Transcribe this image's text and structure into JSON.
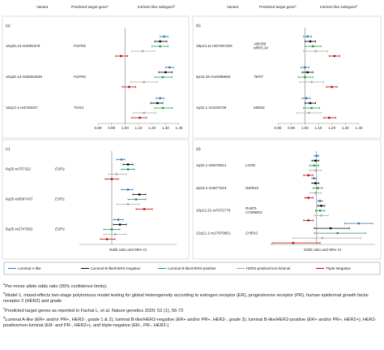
{
  "header": {
    "variant": "Variant",
    "gene": {
      "text": "Predicted target gene",
      "sup": "c"
    },
    "subtypes": {
      "text": "Intrinsic-like subtypes",
      "sup": "d"
    }
  },
  "legend": [
    {
      "name": "Luminal A-like",
      "color": "#2e75b6"
    },
    {
      "name": "Luminal B-like/HER2-negative",
      "color": "#000000"
    },
    {
      "name": "Luminal B-like/HER2-positive",
      "color": "#1a9a4a"
    },
    {
      "name": "HER2-positive/non-luminal",
      "color": "#a6a6a6"
    },
    {
      "name": "Triple-Negative",
      "color": "#c00000"
    }
  ],
  "chart_data": [
    {
      "type": "forest",
      "label": "(a)",
      "reference_line": 1.0,
      "xlim": [
        0.8,
        1.4
      ],
      "xticks": [
        {
          "value": 0.8,
          "label": "0.80"
        },
        {
          "value": 0.9,
          "label": "0.90"
        },
        {
          "value": 1.0,
          "label": "1.00"
        },
        {
          "value": 1.1,
          "label": "1.10"
        },
        {
          "value": 1.2,
          "label": "1.20"
        },
        {
          "value": 1.3,
          "label": "1.30"
        },
        {
          "value": 1.4,
          "label": "1.40"
        }
      ],
      "variants": [
        "10q26.13-rs2981578",
        "10q26.13-rs35054928",
        "16q12.1-rs4784227"
      ],
      "genes": [
        [
          "FGFR2"
        ],
        [
          "FGFR2"
        ],
        [
          "TOX3"
        ]
      ],
      "series": [
        {
          "values": [
            1.29,
            1.33,
            1.26
          ],
          "low": [
            1.26,
            1.3,
            1.23
          ],
          "high": [
            1.32,
            1.36,
            1.29
          ]
        },
        {
          "values": [
            1.26,
            1.3,
            1.24
          ],
          "low": [
            1.22,
            1.25,
            1.19
          ],
          "high": [
            1.31,
            1.35,
            1.28
          ]
        },
        {
          "values": [
            1.26,
            1.28,
            1.28
          ],
          "low": [
            1.2,
            1.22,
            1.22
          ],
          "high": [
            1.32,
            1.35,
            1.35
          ]
        },
        {
          "values": [
            1.13,
            1.14,
            1.14
          ],
          "low": [
            1.05,
            1.04,
            1.06
          ],
          "high": [
            1.22,
            1.24,
            1.23
          ]
        },
        {
          "values": [
            0.97,
            1.03,
            1.11
          ],
          "low": [
            0.93,
            0.98,
            1.05
          ],
          "high": [
            1.02,
            1.08,
            1.16
          ]
        }
      ]
    },
    {
      "type": "forest",
      "label": "(b)",
      "reference_line": 1.0,
      "xlim": [
        0.8,
        1.4
      ],
      "xticks": [
        {
          "value": 0.8,
          "label": "0.80"
        },
        {
          "value": 0.9,
          "label": "0.90"
        },
        {
          "value": 1.0,
          "label": "1.00"
        },
        {
          "value": 1.1,
          "label": "1.10"
        },
        {
          "value": 1.2,
          "label": "1.20"
        },
        {
          "value": 1.3,
          "label": "1.30"
        },
        {
          "value": 1.4,
          "label": "1.40"
        }
      ],
      "variants": [
        "19p13.11-rs67397200",
        "5p15.33-rs10069690",
        "1q32.1-rs4245739"
      ],
      "genes": [
        [
          "ABHD8",
          "MRPL34"
        ],
        [
          "TERT"
        ],
        [
          "MDM4"
        ]
      ],
      "series": [
        {
          "values": [
            1.02,
            1.0,
            1.01
          ],
          "low": [
            0.99,
            0.97,
            0.98
          ],
          "high": [
            1.05,
            1.03,
            1.04
          ]
        },
        {
          "values": [
            1.04,
            1.02,
            1.04
          ],
          "low": [
            1.0,
            0.98,
            1.0
          ],
          "high": [
            1.08,
            1.06,
            1.08
          ]
        },
        {
          "values": [
            1.06,
            1.0,
            1.05
          ],
          "low": [
            1.0,
            0.95,
            0.99
          ],
          "high": [
            1.12,
            1.06,
            1.11
          ]
        },
        {
          "values": [
            1.08,
            1.05,
            1.03
          ],
          "low": [
            0.99,
            0.96,
            0.94
          ],
          "high": [
            1.17,
            1.14,
            1.12
          ]
        },
        {
          "values": [
            1.22,
            1.2,
            1.18
          ],
          "low": [
            1.18,
            1.16,
            1.14
          ],
          "high": [
            1.26,
            1.24,
            1.23
          ]
        }
      ]
    },
    {
      "type": "forest",
      "label": "(c)",
      "reference_line": 1.0,
      "xlim": [
        0.8,
        1.4
      ],
      "xlabel": "Odds ratio and 95% CI",
      "variants": [
        "6q25-rs757322",
        "6q25-rs9397437",
        "6q25-rs2747652"
      ],
      "genes": [
        [
          "ESR1"
        ],
        [
          "ESR1"
        ],
        [
          "ESR1"
        ]
      ],
      "series": [
        {
          "values": [
            1.06,
            1.1,
            1.04
          ],
          "low": [
            1.03,
            1.06,
            1.01
          ],
          "high": [
            1.08,
            1.13,
            1.07
          ]
        },
        {
          "values": [
            1.1,
            1.17,
            1.05
          ],
          "low": [
            1.07,
            1.13,
            1.01
          ],
          "high": [
            1.13,
            1.21,
            1.09
          ]
        },
        {
          "values": [
            1.1,
            1.15,
            1.0
          ],
          "low": [
            1.06,
            1.1,
            0.95
          ],
          "high": [
            1.14,
            1.21,
            1.05
          ]
        },
        {
          "values": [
            1.03,
            1.1,
            1.02
          ],
          "low": [
            0.98,
            1.03,
            0.95
          ],
          "high": [
            1.09,
            1.17,
            1.09
          ]
        },
        {
          "values": [
            1.0,
            1.2,
            0.97
          ],
          "low": [
            0.96,
            1.15,
            0.93
          ],
          "high": [
            1.04,
            1.25,
            1.02
          ]
        }
      ]
    },
    {
      "type": "forest",
      "label": "(d)",
      "reference_line": 1.0,
      "xlim": [
        0.6,
        1.5
      ],
      "xlabel": "Odds ratio and 95% CI",
      "variants": [
        "1q32.1-rs6678914",
        "2p23.2-rs4577244",
        "10p12.31-rs7072776",
        "22q12.1-rs17879961"
      ],
      "genes": [
        [
          "LGR6"
        ],
        [
          "WDR43"
        ],
        [
          "RAB7L",
          "COMMD3"
        ],
        [
          "CHEK2"
        ]
      ],
      "series": [
        {
          "values": [
            1.0,
            0.98,
            1.03,
            1.36
          ],
          "low": [
            0.98,
            0.96,
            1.01,
            1.24
          ],
          "high": [
            1.02,
            1.0,
            1.05,
            1.48
          ]
        },
        {
          "values": [
            0.99,
            0.99,
            1.04,
            1.12
          ],
          "low": [
            0.96,
            0.96,
            1.01,
            0.98
          ],
          "high": [
            1.02,
            1.02,
            1.07,
            1.28
          ]
        },
        {
          "values": [
            0.98,
            1.01,
            1.03,
            1.18
          ],
          "low": [
            0.94,
            0.97,
            0.99,
            0.98
          ],
          "high": [
            1.02,
            1.05,
            1.07,
            1.42
          ]
        },
        {
          "values": [
            0.99,
            0.99,
            1.04,
            1.05
          ],
          "low": [
            0.94,
            0.94,
            0.98,
            0.8
          ],
          "high": [
            1.04,
            1.04,
            1.1,
            1.38
          ]
        },
        {
          "values": [
            0.93,
            0.93,
            0.93,
            0.8
          ],
          "low": [
            0.89,
            0.9,
            0.89,
            0.62
          ],
          "high": [
            0.97,
            0.97,
            0.97,
            1.03
          ]
        }
      ]
    }
  ],
  "footnotes": [
    {
      "mark": "a",
      "text": "Per-minor allele odds ratio (95% confidence limits)."
    },
    {
      "mark": "b",
      "text": "Model 1, mixed-effects two-stage polytomous model testing for global heterogeneity according to estrogen receptor (ER), progesterone receptor (PR), human epidermal growth factor receptor 2 (HER2) and grade"
    },
    {
      "mark": "c",
      "text": "Predicted target genes as reported in Fachal L, et al. Nature genetics 2020; 52 (1), 56-73"
    },
    {
      "mark": "d",
      "text": "Luminal A-like (ER+ and/or PR+, HER2-, grade 1 & 2), luminal B-like/HER2-negative (ER+ and/or PR+, HER2-, grade 3); luminal B-like/HER2-positive (ER+ and/or PR+, HER2+); HER2-positive/non-luminal (ER- and PR-, HER2+), and triple-negative (ER-, PR-, HER2-)"
    }
  ]
}
